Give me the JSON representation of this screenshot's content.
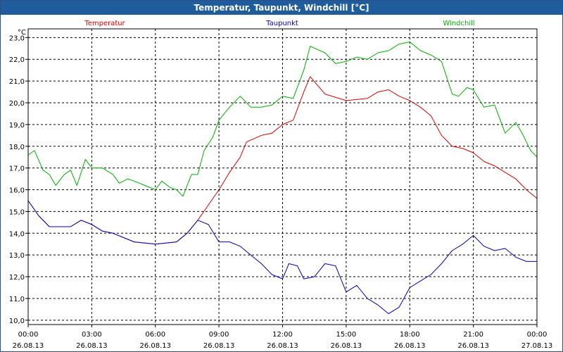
{
  "window": {
    "title": "Temperatur, Taupunkt, Windchill [°C]"
  },
  "chart_data": {
    "type": "line",
    "title": "Temperatur, Taupunkt, Windchill [°C]",
    "ylabel": "°C",
    "ylim": [
      9.8,
      23.4
    ],
    "xlim_hours": [
      0,
      24
    ],
    "grid": true,
    "legend_position": "top",
    "y_ticks": [
      "10,0",
      "11,0",
      "12,0",
      "13,0",
      "14,0",
      "15,0",
      "16,0",
      "17,0",
      "18,0",
      "19,0",
      "20,0",
      "21,0",
      "22,0",
      "23,0"
    ],
    "x_ticks": [
      {
        "time": "00:00",
        "date": "26.08.13"
      },
      {
        "time": "03:00",
        "date": "26.08.13"
      },
      {
        "time": "06:00",
        "date": "26.08.13"
      },
      {
        "time": "09:00",
        "date": "26.08.13"
      },
      {
        "time": "12:00",
        "date": "26.08.13"
      },
      {
        "time": "15:00",
        "date": "26.08.13"
      },
      {
        "time": "18:00",
        "date": "26.08.13"
      },
      {
        "time": "21:00",
        "date": "26.08.13"
      },
      {
        "time": "00:00",
        "date": "27.08.13"
      }
    ],
    "series": [
      {
        "name": "Temperatur",
        "color": "#e00000",
        "points": [
          [
            0,
            15.5
          ],
          [
            0.5,
            14.8
          ],
          [
            1,
            14.3
          ],
          [
            2,
            14.3
          ],
          [
            2.5,
            14.6
          ],
          [
            3,
            14.4
          ],
          [
            3.5,
            14.1
          ],
          [
            4,
            14.0
          ],
          [
            5,
            13.6
          ],
          [
            6,
            13.5
          ],
          [
            7,
            13.6
          ],
          [
            7.5,
            14.0
          ],
          [
            8,
            14.6
          ],
          [
            8.5,
            15.3
          ],
          [
            9,
            16.0
          ],
          [
            9.5,
            16.8
          ],
          [
            10,
            17.5
          ],
          [
            10.3,
            18.2
          ],
          [
            11,
            18.5
          ],
          [
            11.5,
            18.6
          ],
          [
            12,
            19.0
          ],
          [
            12.5,
            19.2
          ],
          [
            13,
            20.5
          ],
          [
            13.3,
            21.2
          ],
          [
            14,
            20.4
          ],
          [
            15,
            20.1
          ],
          [
            16,
            20.2
          ],
          [
            16.5,
            20.5
          ],
          [
            17,
            20.6
          ],
          [
            17.5,
            20.3
          ],
          [
            18,
            20.1
          ],
          [
            18.5,
            19.8
          ],
          [
            19,
            19.4
          ],
          [
            19.5,
            18.5
          ],
          [
            20,
            18.0
          ],
          [
            20.5,
            17.9
          ],
          [
            21,
            17.7
          ],
          [
            21.5,
            17.3
          ],
          [
            22,
            17.1
          ],
          [
            22.5,
            16.8
          ],
          [
            23,
            16.5
          ],
          [
            23.5,
            16.0
          ],
          [
            24,
            15.6
          ]
        ]
      },
      {
        "name": "Taupunkt",
        "color": "#0000c0",
        "points": [
          [
            0,
            15.5
          ],
          [
            0.5,
            14.8
          ],
          [
            1,
            14.3
          ],
          [
            2,
            14.3
          ],
          [
            2.5,
            14.6
          ],
          [
            3,
            14.4
          ],
          [
            3.5,
            14.1
          ],
          [
            4,
            14.0
          ],
          [
            5,
            13.6
          ],
          [
            6,
            13.5
          ],
          [
            7,
            13.6
          ],
          [
            7.5,
            14.0
          ],
          [
            8,
            14.6
          ],
          [
            8.5,
            14.4
          ],
          [
            9,
            13.6
          ],
          [
            9.5,
            13.6
          ],
          [
            10,
            13.4
          ],
          [
            10.5,
            13.0
          ],
          [
            11,
            12.6
          ],
          [
            11.5,
            12.1
          ],
          [
            12,
            11.9
          ],
          [
            12.3,
            12.6
          ],
          [
            12.7,
            12.5
          ],
          [
            13,
            11.9
          ],
          [
            13.5,
            12.0
          ],
          [
            14,
            12.6
          ],
          [
            14.5,
            12.5
          ],
          [
            15,
            11.3
          ],
          [
            15.5,
            11.6
          ],
          [
            16,
            11.0
          ],
          [
            16.5,
            10.7
          ],
          [
            17,
            10.3
          ],
          [
            17.5,
            10.6
          ],
          [
            18,
            11.5
          ],
          [
            18.5,
            11.8
          ],
          [
            19,
            12.1
          ],
          [
            19.5,
            12.6
          ],
          [
            20,
            13.2
          ],
          [
            20.5,
            13.5
          ],
          [
            21,
            13.9
          ],
          [
            21.5,
            13.4
          ],
          [
            22,
            13.2
          ],
          [
            22.5,
            13.3
          ],
          [
            23,
            12.9
          ],
          [
            23.5,
            12.7
          ],
          [
            24,
            12.7
          ]
        ]
      },
      {
        "name": "Windchill",
        "color": "#00b000",
        "points": [
          [
            0,
            17.6
          ],
          [
            0.3,
            17.8
          ],
          [
            0.7,
            16.9
          ],
          [
            1,
            16.7
          ],
          [
            1.3,
            16.2
          ],
          [
            1.7,
            16.7
          ],
          [
            2,
            16.9
          ],
          [
            2.3,
            16.2
          ],
          [
            2.7,
            17.4
          ],
          [
            3,
            17.0
          ],
          [
            3.5,
            17.0
          ],
          [
            4,
            16.7
          ],
          [
            4.3,
            16.3
          ],
          [
            4.7,
            16.5
          ],
          [
            5,
            16.4
          ],
          [
            5.5,
            16.2
          ],
          [
            6,
            16.0
          ],
          [
            6.3,
            16.4
          ],
          [
            6.7,
            16.1
          ],
          [
            7,
            16.0
          ],
          [
            7.3,
            15.7
          ],
          [
            7.7,
            16.7
          ],
          [
            8,
            16.7
          ],
          [
            8.3,
            17.8
          ],
          [
            8.7,
            18.4
          ],
          [
            9,
            19.2
          ],
          [
            9.5,
            19.8
          ],
          [
            10,
            20.3
          ],
          [
            10.5,
            19.8
          ],
          [
            11,
            19.8
          ],
          [
            11.5,
            19.9
          ],
          [
            12,
            20.3
          ],
          [
            12.5,
            20.2
          ],
          [
            13,
            21.5
          ],
          [
            13.3,
            22.6
          ],
          [
            14,
            22.3
          ],
          [
            14.5,
            21.8
          ],
          [
            15,
            21.9
          ],
          [
            15.5,
            22.1
          ],
          [
            16,
            22.0
          ],
          [
            16.5,
            22.3
          ],
          [
            17,
            22.4
          ],
          [
            17.5,
            22.7
          ],
          [
            18,
            22.8
          ],
          [
            18.5,
            22.4
          ],
          [
            19,
            22.2
          ],
          [
            19.5,
            21.9
          ],
          [
            20,
            20.4
          ],
          [
            20.3,
            20.3
          ],
          [
            20.7,
            20.7
          ],
          [
            21,
            20.6
          ],
          [
            21.5,
            19.8
          ],
          [
            22,
            19.9
          ],
          [
            22.5,
            18.6
          ],
          [
            23,
            19.1
          ],
          [
            23.3,
            18.6
          ],
          [
            23.7,
            17.8
          ],
          [
            24,
            17.5
          ]
        ]
      }
    ]
  }
}
